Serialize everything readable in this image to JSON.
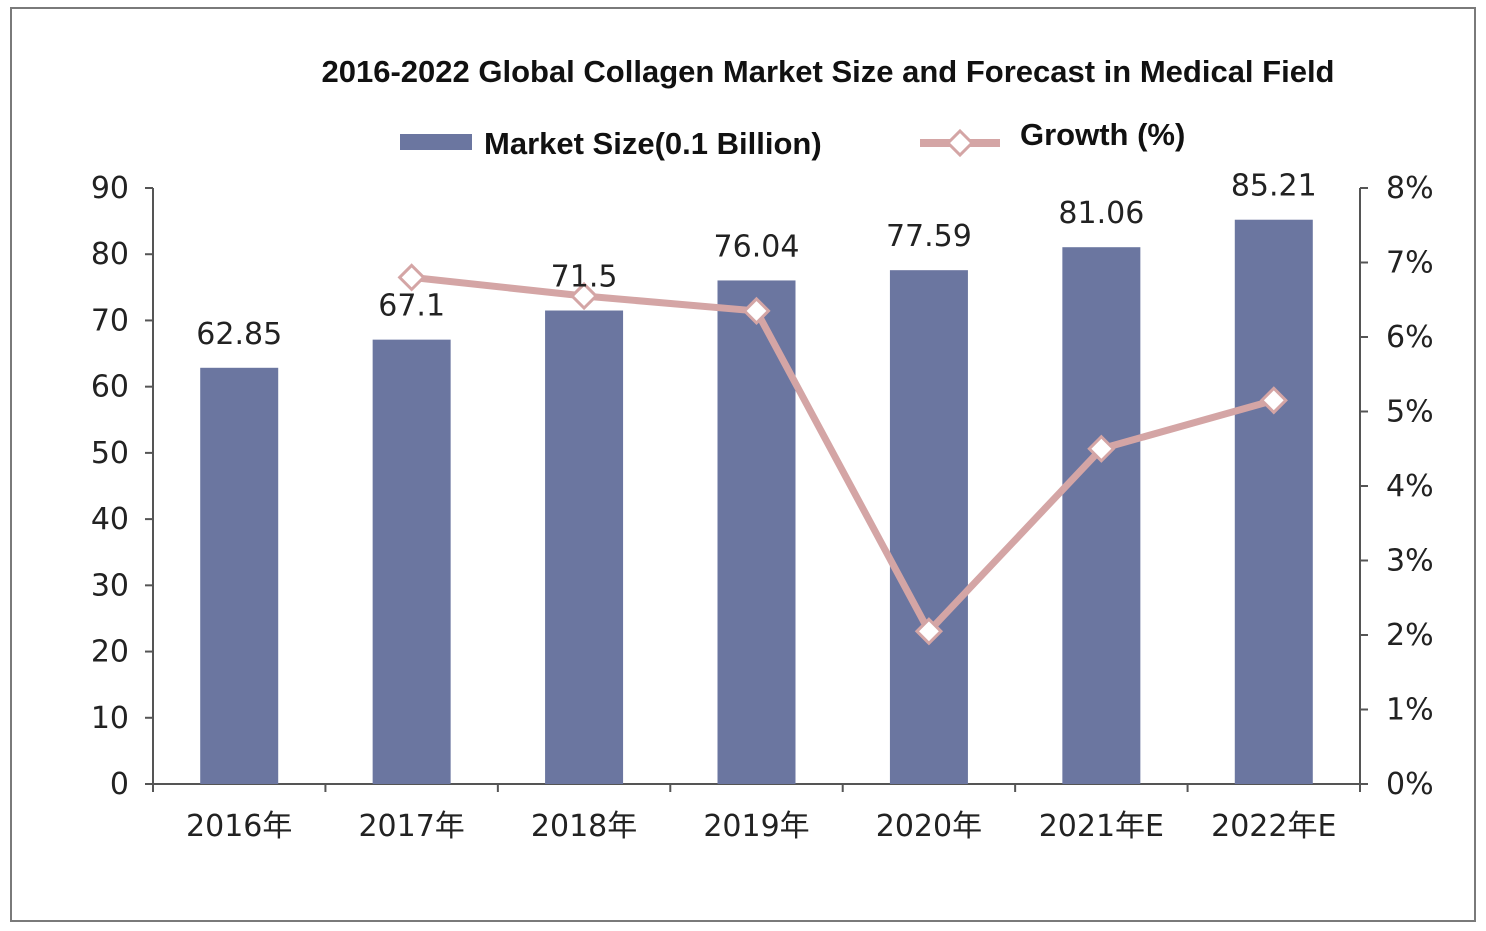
{
  "chart_data": {
    "type": "bar",
    "title": "2016-2022 Global Collagen Market Size and Forecast in Medical Field",
    "categories": [
      "2016年",
      "2017年",
      "2018年",
      "2019年",
      "2020年",
      "2021年E",
      "2022年E"
    ],
    "series": [
      {
        "name": "Market Size(0.1 Billion)",
        "type": "bar",
        "axis": "left",
        "color": "#6b76a0",
        "values": [
          62.85,
          67.1,
          71.5,
          76.04,
          77.59,
          81.06,
          85.21
        ],
        "labels": [
          "62.85",
          "67.1",
          "71.5",
          "76.04",
          "77.59",
          "81.06",
          "85.21"
        ]
      },
      {
        "name": "Growth (%)",
        "type": "line",
        "axis": "right",
        "color": "#d4a5a5",
        "values": [
          null,
          6.8,
          6.55,
          6.35,
          2.05,
          4.5,
          5.15
        ]
      }
    ],
    "y_left": {
      "min": 0,
      "max": 90,
      "ticks": [
        "0",
        "10",
        "20",
        "30",
        "40",
        "50",
        "60",
        "70",
        "80",
        "90"
      ]
    },
    "y_right": {
      "min": 0,
      "max": 8,
      "ticks": [
        "0%",
        "1%",
        "2%",
        "3%",
        "4%",
        "5%",
        "6%",
        "7%",
        "8%"
      ]
    },
    "legend": "top",
    "grid": false
  }
}
